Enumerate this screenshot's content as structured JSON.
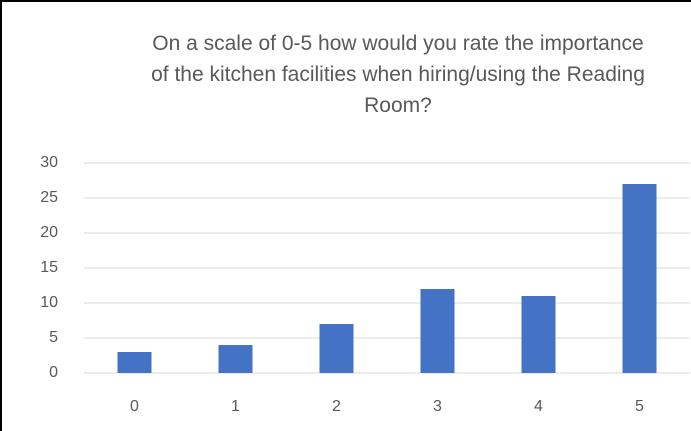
{
  "chart_data": {
    "type": "bar",
    "title": "On a scale of 0-5 how would you rate  the importance of the kitchen facilities when hiring/using the Reading Room?",
    "categories": [
      "0",
      "1",
      "2",
      "3",
      "4",
      "5"
    ],
    "values": [
      3,
      4,
      7,
      12,
      11,
      27
    ],
    "color": "#4472c4",
    "ylim": [
      0,
      30
    ],
    "yticks": [
      0,
      5,
      10,
      15,
      20,
      25,
      30
    ],
    "grid": true
  }
}
